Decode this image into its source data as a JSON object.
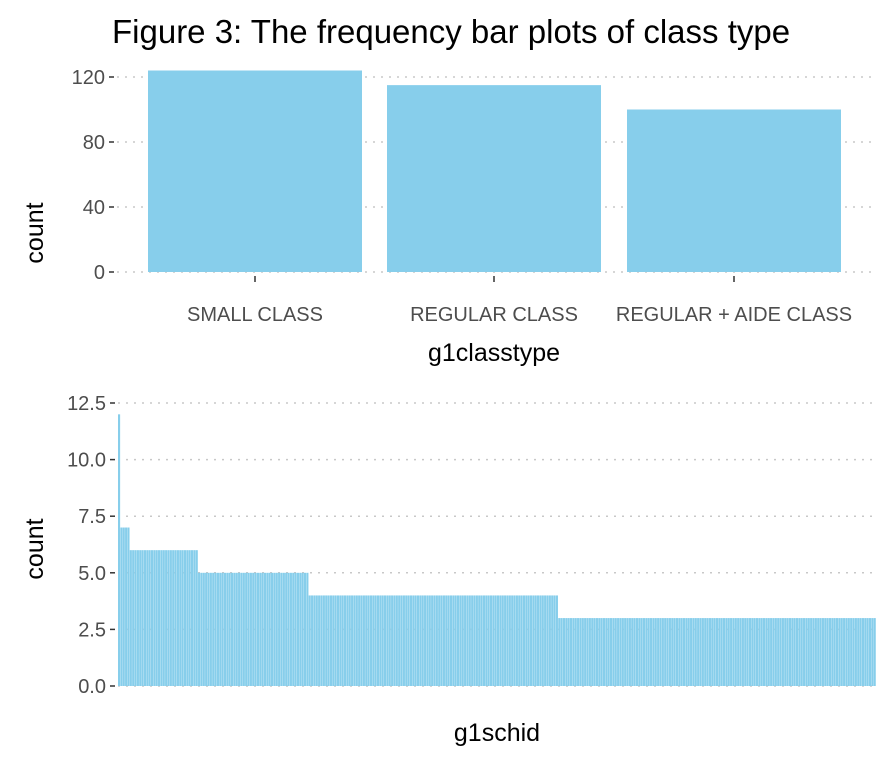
{
  "title": "Figure 3: The frequency bar plots of class type",
  "colors": {
    "bar": "#87CEEB",
    "grid": "#C8C8C8",
    "tick_text": "#4d4d4d",
    "background": "#ffffff"
  },
  "chart_data": [
    {
      "type": "bar",
      "categories": [
        "SMALL CLASS",
        "REGULAR CLASS",
        "REGULAR + AIDE CLASS"
      ],
      "values": [
        124,
        115,
        100
      ],
      "xlabel": "g1classtype",
      "ylabel": "count",
      "yticks": [
        "0",
        "40",
        "80",
        "120"
      ],
      "ylim": [
        0,
        124
      ],
      "grid": "dotted major",
      "legend": "none"
    },
    {
      "type": "bar",
      "xlabel": "g1schid",
      "ylabel": "count",
      "yticks": [
        "0.0",
        "2.5",
        "5.0",
        "7.5",
        "10.0",
        "12.5"
      ],
      "ylim": [
        0,
        12.5
      ],
      "grid": "dotted major",
      "x_tick_labels": "not shown",
      "values": [
        12,
        7,
        7,
        7,
        7,
        6,
        6,
        6,
        6,
        6,
        6,
        6,
        6,
        6,
        6,
        6,
        6,
        6,
        6,
        6,
        6,
        6,
        6,
        6,
        6,
        6,
        6,
        6,
        6,
        6,
        6,
        6,
        6,
        6,
        5,
        5,
        5,
        5,
        5,
        5,
        5,
        5,
        5,
        5,
        5,
        5,
        5,
        5,
        5,
        5,
        5,
        5,
        5,
        5,
        5,
        5,
        5,
        5,
        5,
        5,
        5,
        5,
        5,
        5,
        5,
        5,
        5,
        5,
        5,
        5,
        5,
        5,
        5,
        5,
        5,
        5,
        5,
        5,
        5,
        5,
        5,
        4,
        4,
        4,
        4,
        4,
        4,
        4,
        4,
        4,
        4,
        4,
        4,
        4,
        4,
        4,
        4,
        4,
        4,
        4,
        4,
        4,
        4,
        4,
        4,
        4,
        4,
        4,
        4,
        4,
        4,
        4,
        4,
        4,
        4,
        4,
        4,
        4,
        4,
        4,
        4,
        4,
        4,
        4,
        4,
        4,
        4,
        4,
        4,
        4,
        4,
        4,
        4,
        4,
        4,
        4,
        4,
        4,
        4,
        4,
        4,
        4,
        4,
        4,
        4,
        4,
        4,
        4,
        4,
        4,
        4,
        4,
        4,
        4,
        4,
        4,
        4,
        4,
        4,
        4,
        4,
        4,
        4,
        4,
        4,
        4,
        4,
        4,
        4,
        4,
        4,
        4,
        4,
        4,
        4,
        4,
        4,
        4,
        4,
        4,
        4,
        4,
        4,
        4,
        4,
        4,
        4,
        3,
        3,
        3,
        3,
        3,
        3,
        3,
        3,
        3,
        3,
        3,
        3,
        3,
        3,
        3,
        3,
        3,
        3,
        3,
        3,
        3,
        3,
        3,
        3,
        3,
        3,
        3,
        3,
        3,
        3,
        3,
        3,
        3,
        3,
        3,
        3,
        3,
        3,
        3,
        3,
        3,
        3,
        3,
        3,
        3,
        3,
        3,
        3,
        3,
        3,
        3,
        3,
        3,
        3,
        3,
        3,
        3,
        3,
        3,
        3,
        3,
        3,
        3,
        3,
        3,
        3,
        3,
        3,
        3,
        3,
        3,
        3,
        3,
        3,
        3,
        3,
        3,
        3,
        3,
        3,
        3,
        3,
        3,
        3,
        3,
        3,
        3,
        3,
        3,
        3,
        3,
        3,
        3,
        3,
        3,
        3,
        3,
        3,
        3,
        3,
        3,
        3,
        3,
        3,
        3,
        3,
        3,
        3,
        3,
        3,
        3,
        3,
        3,
        3,
        3,
        3,
        3,
        3,
        3,
        3,
        3,
        3,
        3,
        3,
        3,
        3,
        3,
        3,
        3,
        3,
        3,
        3,
        3,
        3,
        3
      ]
    }
  ]
}
